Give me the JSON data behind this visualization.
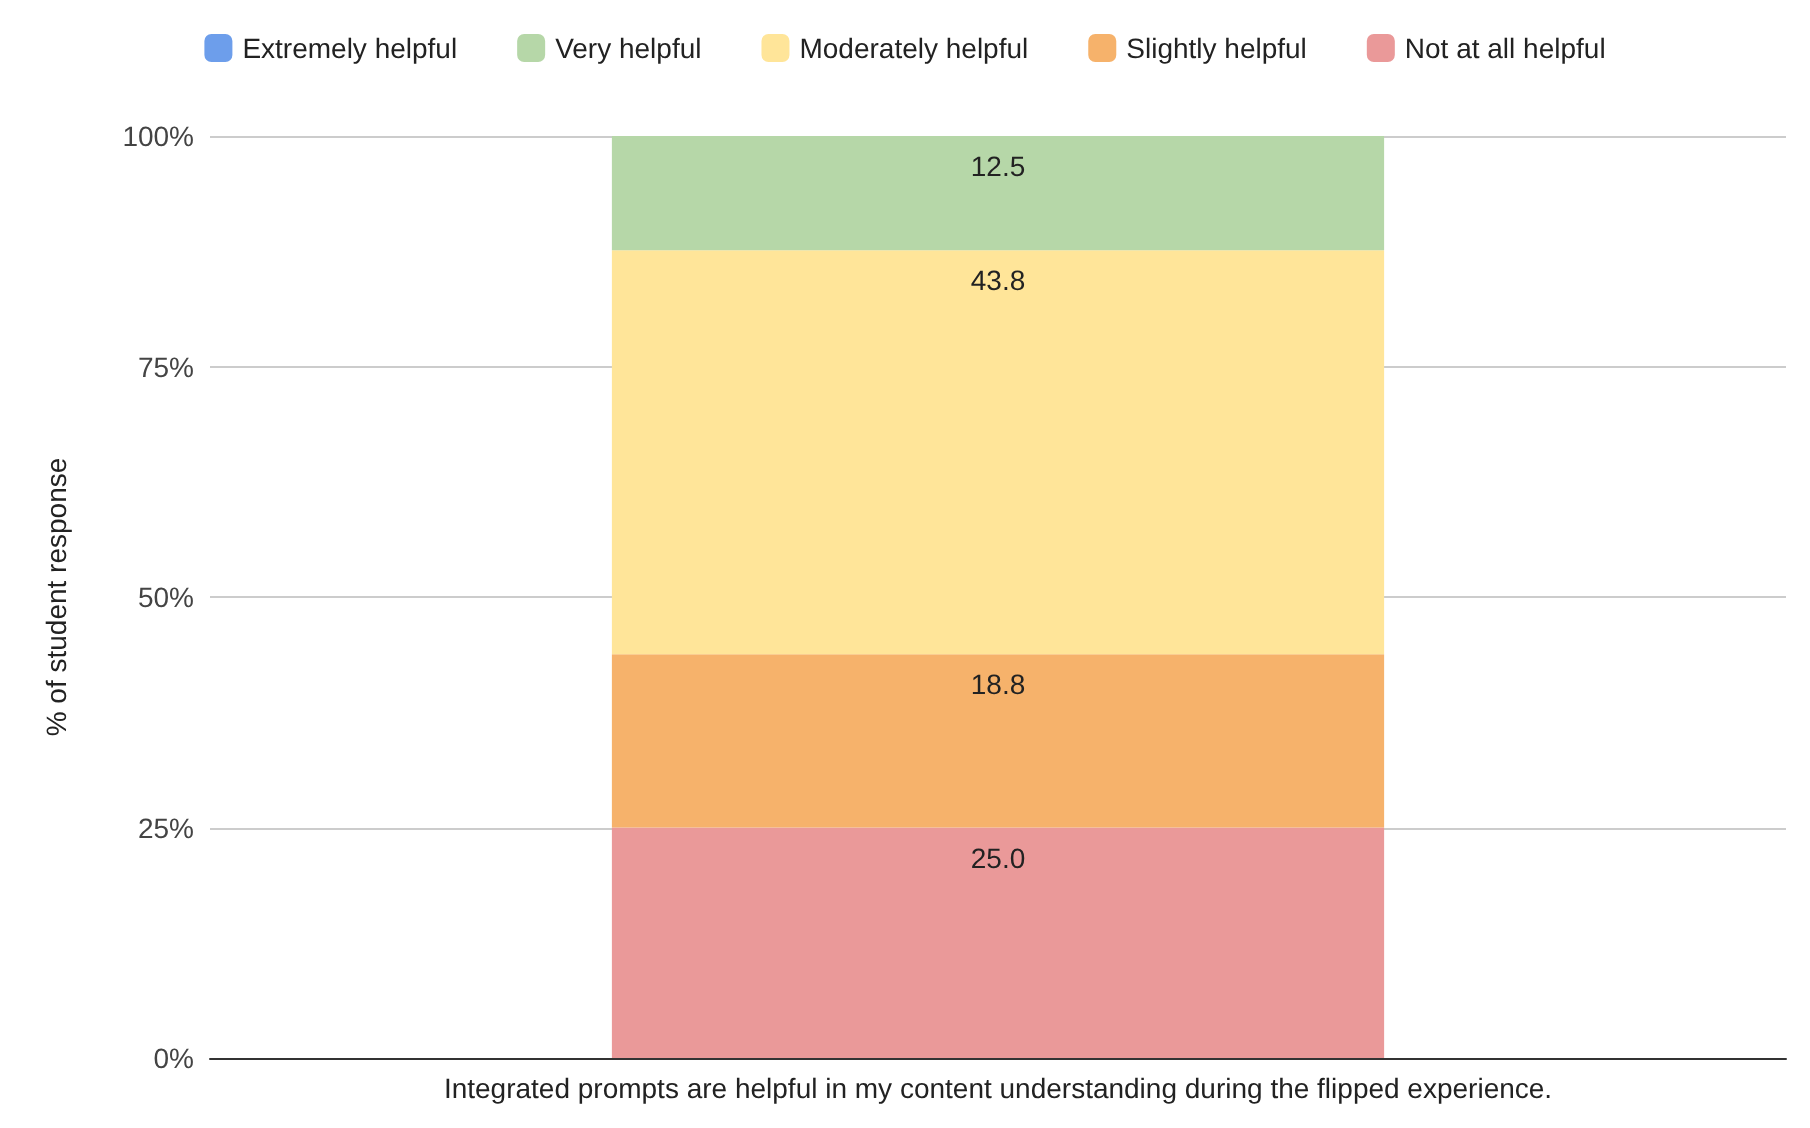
{
  "chart_data": {
    "type": "bar",
    "stacked": true,
    "ylabel": "% of student response",
    "categories": [
      "Integrated prompts are helpful in my content understanding during the flipped experience."
    ],
    "series": [
      {
        "name": "Not at all helpful",
        "color": "#ea9999",
        "values": [
          25.0
        ],
        "value_labels": [
          "25.0"
        ]
      },
      {
        "name": "Slightly helpful",
        "color": "#f6b26b",
        "values": [
          18.8
        ],
        "value_labels": [
          "18.8"
        ]
      },
      {
        "name": "Moderately helpful",
        "color": "#ffe599",
        "values": [
          43.8
        ],
        "value_labels": [
          "43.8"
        ]
      },
      {
        "name": "Very helpful",
        "color": "#b6d7a8",
        "values": [
          12.5
        ],
        "value_labels": [
          "12.5"
        ]
      },
      {
        "name": "Extremely helpful",
        "color": "#6d9eeb",
        "values": [
          0
        ],
        "value_labels": [
          null
        ]
      }
    ],
    "ylim": [
      0,
      100
    ],
    "yticks": [
      {
        "value": 0,
        "label": "0%"
      },
      {
        "value": 25,
        "label": "25%"
      },
      {
        "value": 50,
        "label": "50%"
      },
      {
        "value": 75,
        "label": "75%"
      },
      {
        "value": 100,
        "label": "100%"
      }
    ],
    "grid": "y",
    "legend": "top"
  }
}
